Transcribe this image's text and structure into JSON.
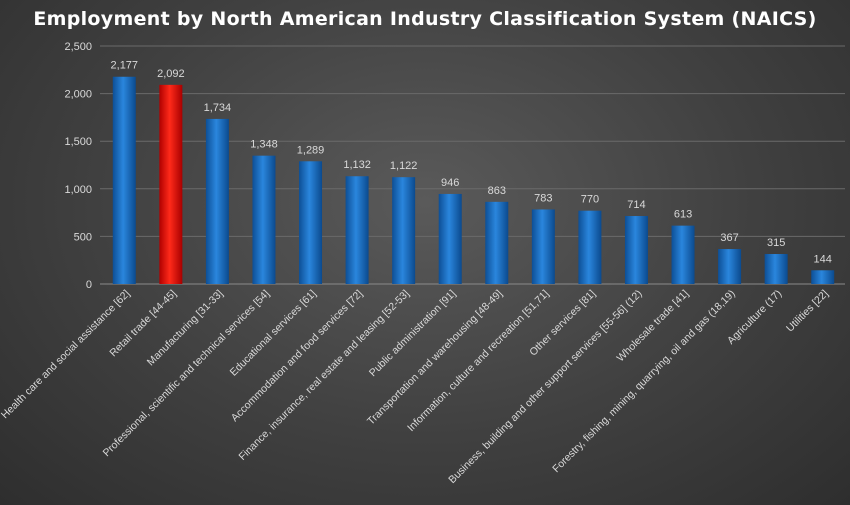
{
  "chart_data": {
    "type": "bar",
    "title": "Employment by North American Industry Classification System (NAICS)",
    "xlabel": "",
    "ylabel": "",
    "ylim": [
      0,
      2500
    ],
    "yticks": [
      0,
      500,
      1000,
      1500,
      2000,
      2500
    ],
    "ytick_labels": [
      "0",
      "500",
      "1,000",
      "1,500",
      "2,000",
      "2,500"
    ],
    "grid": true,
    "categories": [
      "Health care and social assistance [62]",
      "Retail trade [44-45]",
      "Manufacturing [31-33]",
      "Professional, scientific and technical services [54]",
      "Educational services [61]",
      "Accommodation and food services [72]",
      "Finance, insurance, real estate and leasing [52-53]",
      "Public administration [91]",
      "Transportation and warehousing [48-49]",
      "Information, culture and recreation [51,71]",
      "Other services [81]",
      "Business, building and other support services [55-56] (12)",
      "Wholesale trade [41]",
      "Forestry, fishing, mining, quarrying, oil and gas (18,19)",
      "Agriculture (17)",
      "Utilities [22]"
    ],
    "values": [
      2177,
      2092,
      1734,
      1348,
      1289,
      1132,
      1122,
      946,
      863,
      783,
      770,
      714,
      613,
      367,
      315,
      144
    ],
    "value_labels": [
      "2,177",
      "2,092",
      "1,734",
      "1,348",
      "1,289",
      "1,132",
      "1,122",
      "946",
      "863",
      "783",
      "770",
      "714",
      "613",
      "367",
      "315",
      "144"
    ],
    "highlight_index": 1,
    "colors": {
      "bar": "#1a6fc4",
      "bar_highlight": "#e01010",
      "text": "#d9d9d9",
      "title": "#ffffff"
    }
  }
}
